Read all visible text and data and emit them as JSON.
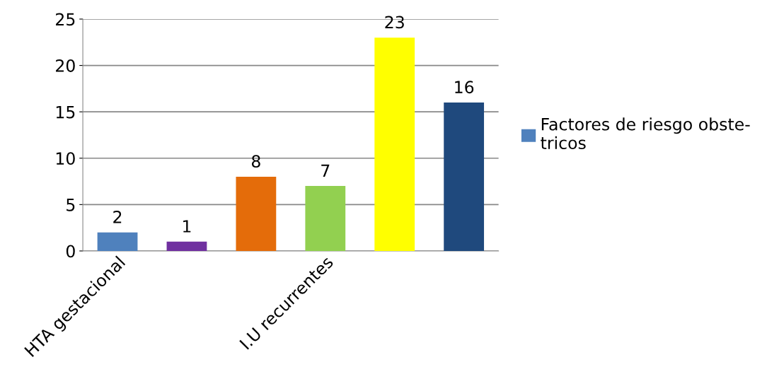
{
  "chart_data": {
    "type": "bar",
    "categories": [
      "HTA gestacional",
      null,
      null,
      "I.U recurrentes",
      null,
      null
    ],
    "series": [
      {
        "name": "Factores de riesgo obste-\ntricos",
        "color": "#4f81bd",
        "colors": [
          "#4f81bd",
          "#7030a0",
          "#e46c0a",
          "#92d050",
          "#ffff00",
          "#1f497d"
        ],
        "values": [
          2,
          1,
          8,
          7,
          23,
          16
        ]
      }
    ],
    "ylim": [
      0,
      25
    ],
    "yticks": [
      0,
      5,
      10,
      15,
      20,
      25
    ],
    "grid": "y",
    "legend": "right",
    "data_labels": true
  }
}
